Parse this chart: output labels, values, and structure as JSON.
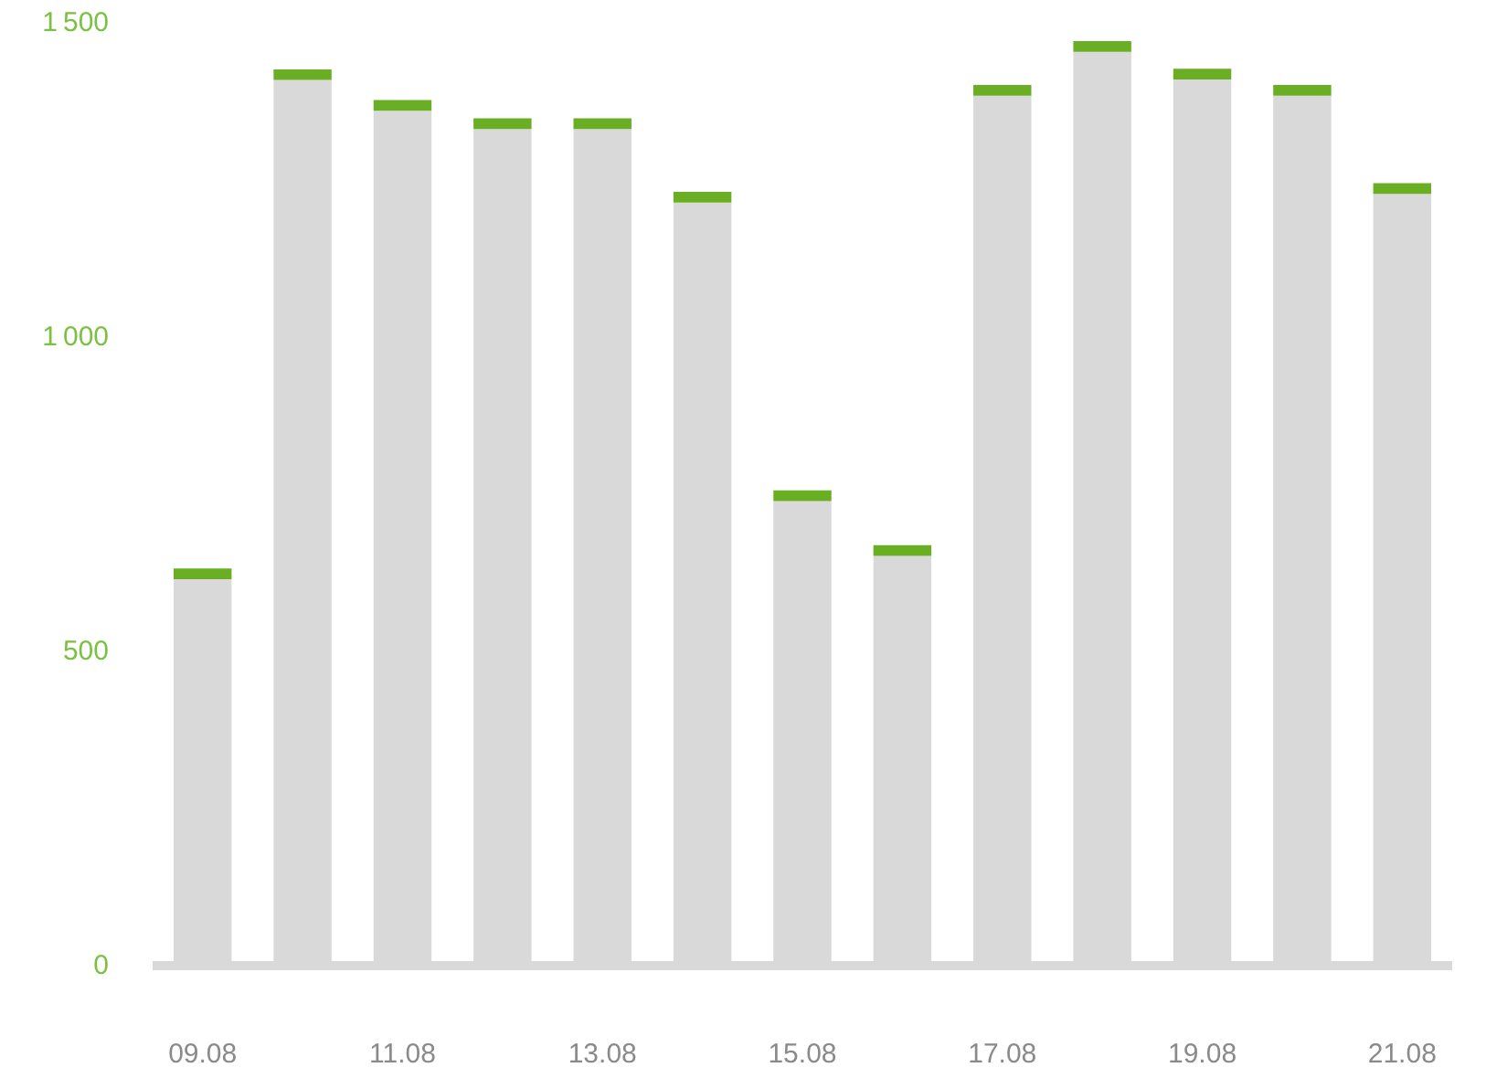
{
  "chart_data": {
    "type": "bar",
    "stacked": true,
    "categories": [
      "09.08",
      null,
      "11.08",
      null,
      "13.08",
      null,
      "15.08",
      null,
      "17.08",
      null,
      "19.08",
      null,
      "21.08"
    ],
    "series": [
      {
        "color": "#d9d9d9",
        "values": [
          615,
          1409,
          1360,
          1331,
          1331,
          1214,
          739,
          652,
          1384,
          1454,
          1410,
          1384,
          1228
        ]
      },
      {
        "color": "#6aaf23",
        "values": [
          17,
          17,
          17,
          17,
          17,
          17,
          17,
          17,
          17,
          17,
          17,
          17,
          17
        ]
      }
    ],
    "ylim": [
      0,
      1500
    ],
    "yticks": [
      0,
      500,
      1000,
      1500
    ],
    "grid": false
  }
}
